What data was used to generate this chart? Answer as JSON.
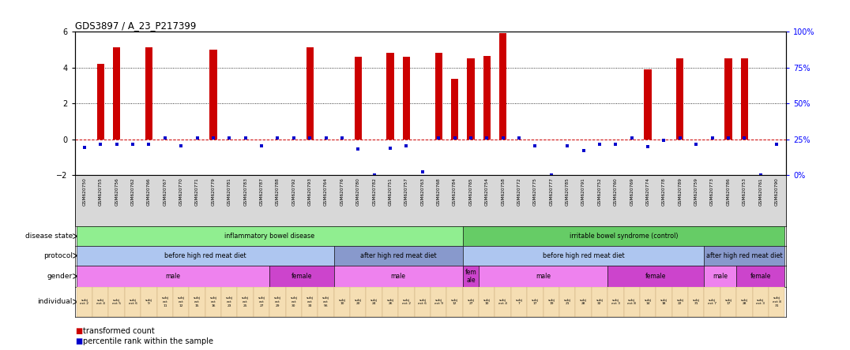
{
  "title": "GDS3897 / A_23_P217399",
  "samples": [
    "GSM620750",
    "GSM620755",
    "GSM620756",
    "GSM620762",
    "GSM620766",
    "GSM620767",
    "GSM620770",
    "GSM620771",
    "GSM620779",
    "GSM620781",
    "GSM620783",
    "GSM620787",
    "GSM620788",
    "GSM620792",
    "GSM620793",
    "GSM620764",
    "GSM620776",
    "GSM620780",
    "GSM620782",
    "GSM620751",
    "GSM620757",
    "GSM620763",
    "GSM620768",
    "GSM620784",
    "GSM620765",
    "GSM620754",
    "GSM620758",
    "GSM620772",
    "GSM620775",
    "GSM620777",
    "GSM620785",
    "GSM620791",
    "GSM620752",
    "GSM620760",
    "GSM620769",
    "GSM620774",
    "GSM620778",
    "GSM620789",
    "GSM620759",
    "GSM620773",
    "GSM620786",
    "GSM620753",
    "GSM620761",
    "GSM620790"
  ],
  "bar_values": [
    null,
    4.2,
    5.1,
    null,
    5.1,
    null,
    null,
    null,
    5.0,
    null,
    null,
    null,
    null,
    null,
    5.1,
    null,
    null,
    4.6,
    null,
    4.8,
    4.6,
    null,
    4.8,
    3.35,
    4.5,
    4.65,
    5.9,
    null,
    null,
    null,
    null,
    null,
    null,
    null,
    null,
    3.9,
    null,
    4.5,
    null,
    null,
    4.5,
    4.5,
    null,
    null
  ],
  "bar_values_full": [
    0,
    4.2,
    5.1,
    0,
    5.1,
    0,
    0,
    0,
    5.0,
    0,
    0,
    0,
    0,
    0,
    5.1,
    0,
    0,
    4.6,
    0,
    4.8,
    4.6,
    0,
    4.8,
    3.35,
    4.5,
    4.65,
    5.9,
    0,
    0,
    0,
    0,
    0,
    0,
    0,
    0,
    3.9,
    0,
    4.5,
    0,
    0,
    4.5,
    4.5,
    0,
    0
  ],
  "blue_values": [
    -0.45,
    -0.3,
    -0.3,
    -0.3,
    -0.3,
    0.05,
    -0.35,
    0.05,
    0.05,
    0.05,
    0.05,
    -0.35,
    0.05,
    0.05,
    0.05,
    0.05,
    0.05,
    -0.55,
    -2.0,
    -0.5,
    -0.35,
    -1.8,
    0.05,
    0.05,
    0.05,
    0.05,
    0.05,
    0.05,
    -0.35,
    -2.0,
    -0.35,
    -0.65,
    -0.3,
    -0.3,
    0.05,
    -0.4,
    -0.05,
    0.05,
    -0.3,
    0.05,
    0.05,
    0.05,
    -2.0,
    -0.3
  ],
  "ylim": [
    -2,
    6
  ],
  "yticks_left": [
    -2,
    0,
    2,
    4,
    6
  ],
  "bar_color": "#cc0000",
  "blue_color": "#0000cc",
  "dotted_lines": [
    2,
    4
  ],
  "disease_state_groups": [
    {
      "label": "inflammatory bowel disease",
      "start": 0,
      "end": 24,
      "color": "#90ee90"
    },
    {
      "label": "irritable bowel syndrome (control)",
      "start": 24,
      "end": 44,
      "color": "#66cc66"
    }
  ],
  "protocol_groups": [
    {
      "label": "before high red meat diet",
      "start": 0,
      "end": 16,
      "color": "#aec6f0"
    },
    {
      "label": "after high red meat diet",
      "start": 16,
      "end": 24,
      "color": "#8899cc"
    },
    {
      "label": "before high red meat diet",
      "start": 24,
      "end": 39,
      "color": "#aec6f0"
    },
    {
      "label": "after high red meat diet",
      "start": 39,
      "end": 44,
      "color": "#8899cc"
    }
  ],
  "gender_groups": [
    {
      "label": "male",
      "start": 0,
      "end": 12,
      "color": "#ee82ee"
    },
    {
      "label": "female",
      "start": 12,
      "end": 16,
      "color": "#cc44cc"
    },
    {
      "label": "male",
      "start": 16,
      "end": 24,
      "color": "#ee82ee"
    },
    {
      "label": "fem\nale",
      "start": 24,
      "end": 25,
      "color": "#cc44cc"
    },
    {
      "label": "male",
      "start": 25,
      "end": 33,
      "color": "#ee82ee"
    },
    {
      "label": "female",
      "start": 33,
      "end": 39,
      "color": "#cc44cc"
    },
    {
      "label": "male",
      "start": 39,
      "end": 41,
      "color": "#ee82ee"
    },
    {
      "label": "female",
      "start": 41,
      "end": 44,
      "color": "#cc44cc"
    }
  ],
  "indiv_labels": [
    "subj\nect 2",
    "subj\nect 4",
    "subj\nect 5",
    "subj\nect 6",
    "subj\n9",
    "subj\nect\n11",
    "subj\nect\n12",
    "subj\nect\n15",
    "subj\nect\n16",
    "subj\nect\n23",
    "subj\nect\n25",
    "subj\nect\n27",
    "subj\nect\n29",
    "subj\nect\n30",
    "subj\nect\n33",
    "subj\nect\n56",
    "subj\n10",
    "subj\n20",
    "subj\n24",
    "subj\n26",
    "subj\nect 2",
    "subj\nect 6",
    "subj\nect 9",
    "subj\n12",
    "subj\n27",
    "subj\n10",
    "subj\nect 4",
    "subj\n7",
    "subj\n17",
    "subj\n19",
    "subj\n21",
    "subj\n28",
    "subj\n32",
    "subj\nect 3",
    "subj\nect 8",
    "subj\n14",
    "subj\n18",
    "subj\n22",
    "subj\n31",
    "subj\nect 7",
    "subj\n17",
    "subj\n28",
    "subj\nect 3",
    "subj\nect 8\n31"
  ],
  "legend_items": [
    {
      "color": "#cc0000",
      "label": "transformed count"
    },
    {
      "color": "#0000cc",
      "label": "percentile rank within the sample"
    }
  ]
}
